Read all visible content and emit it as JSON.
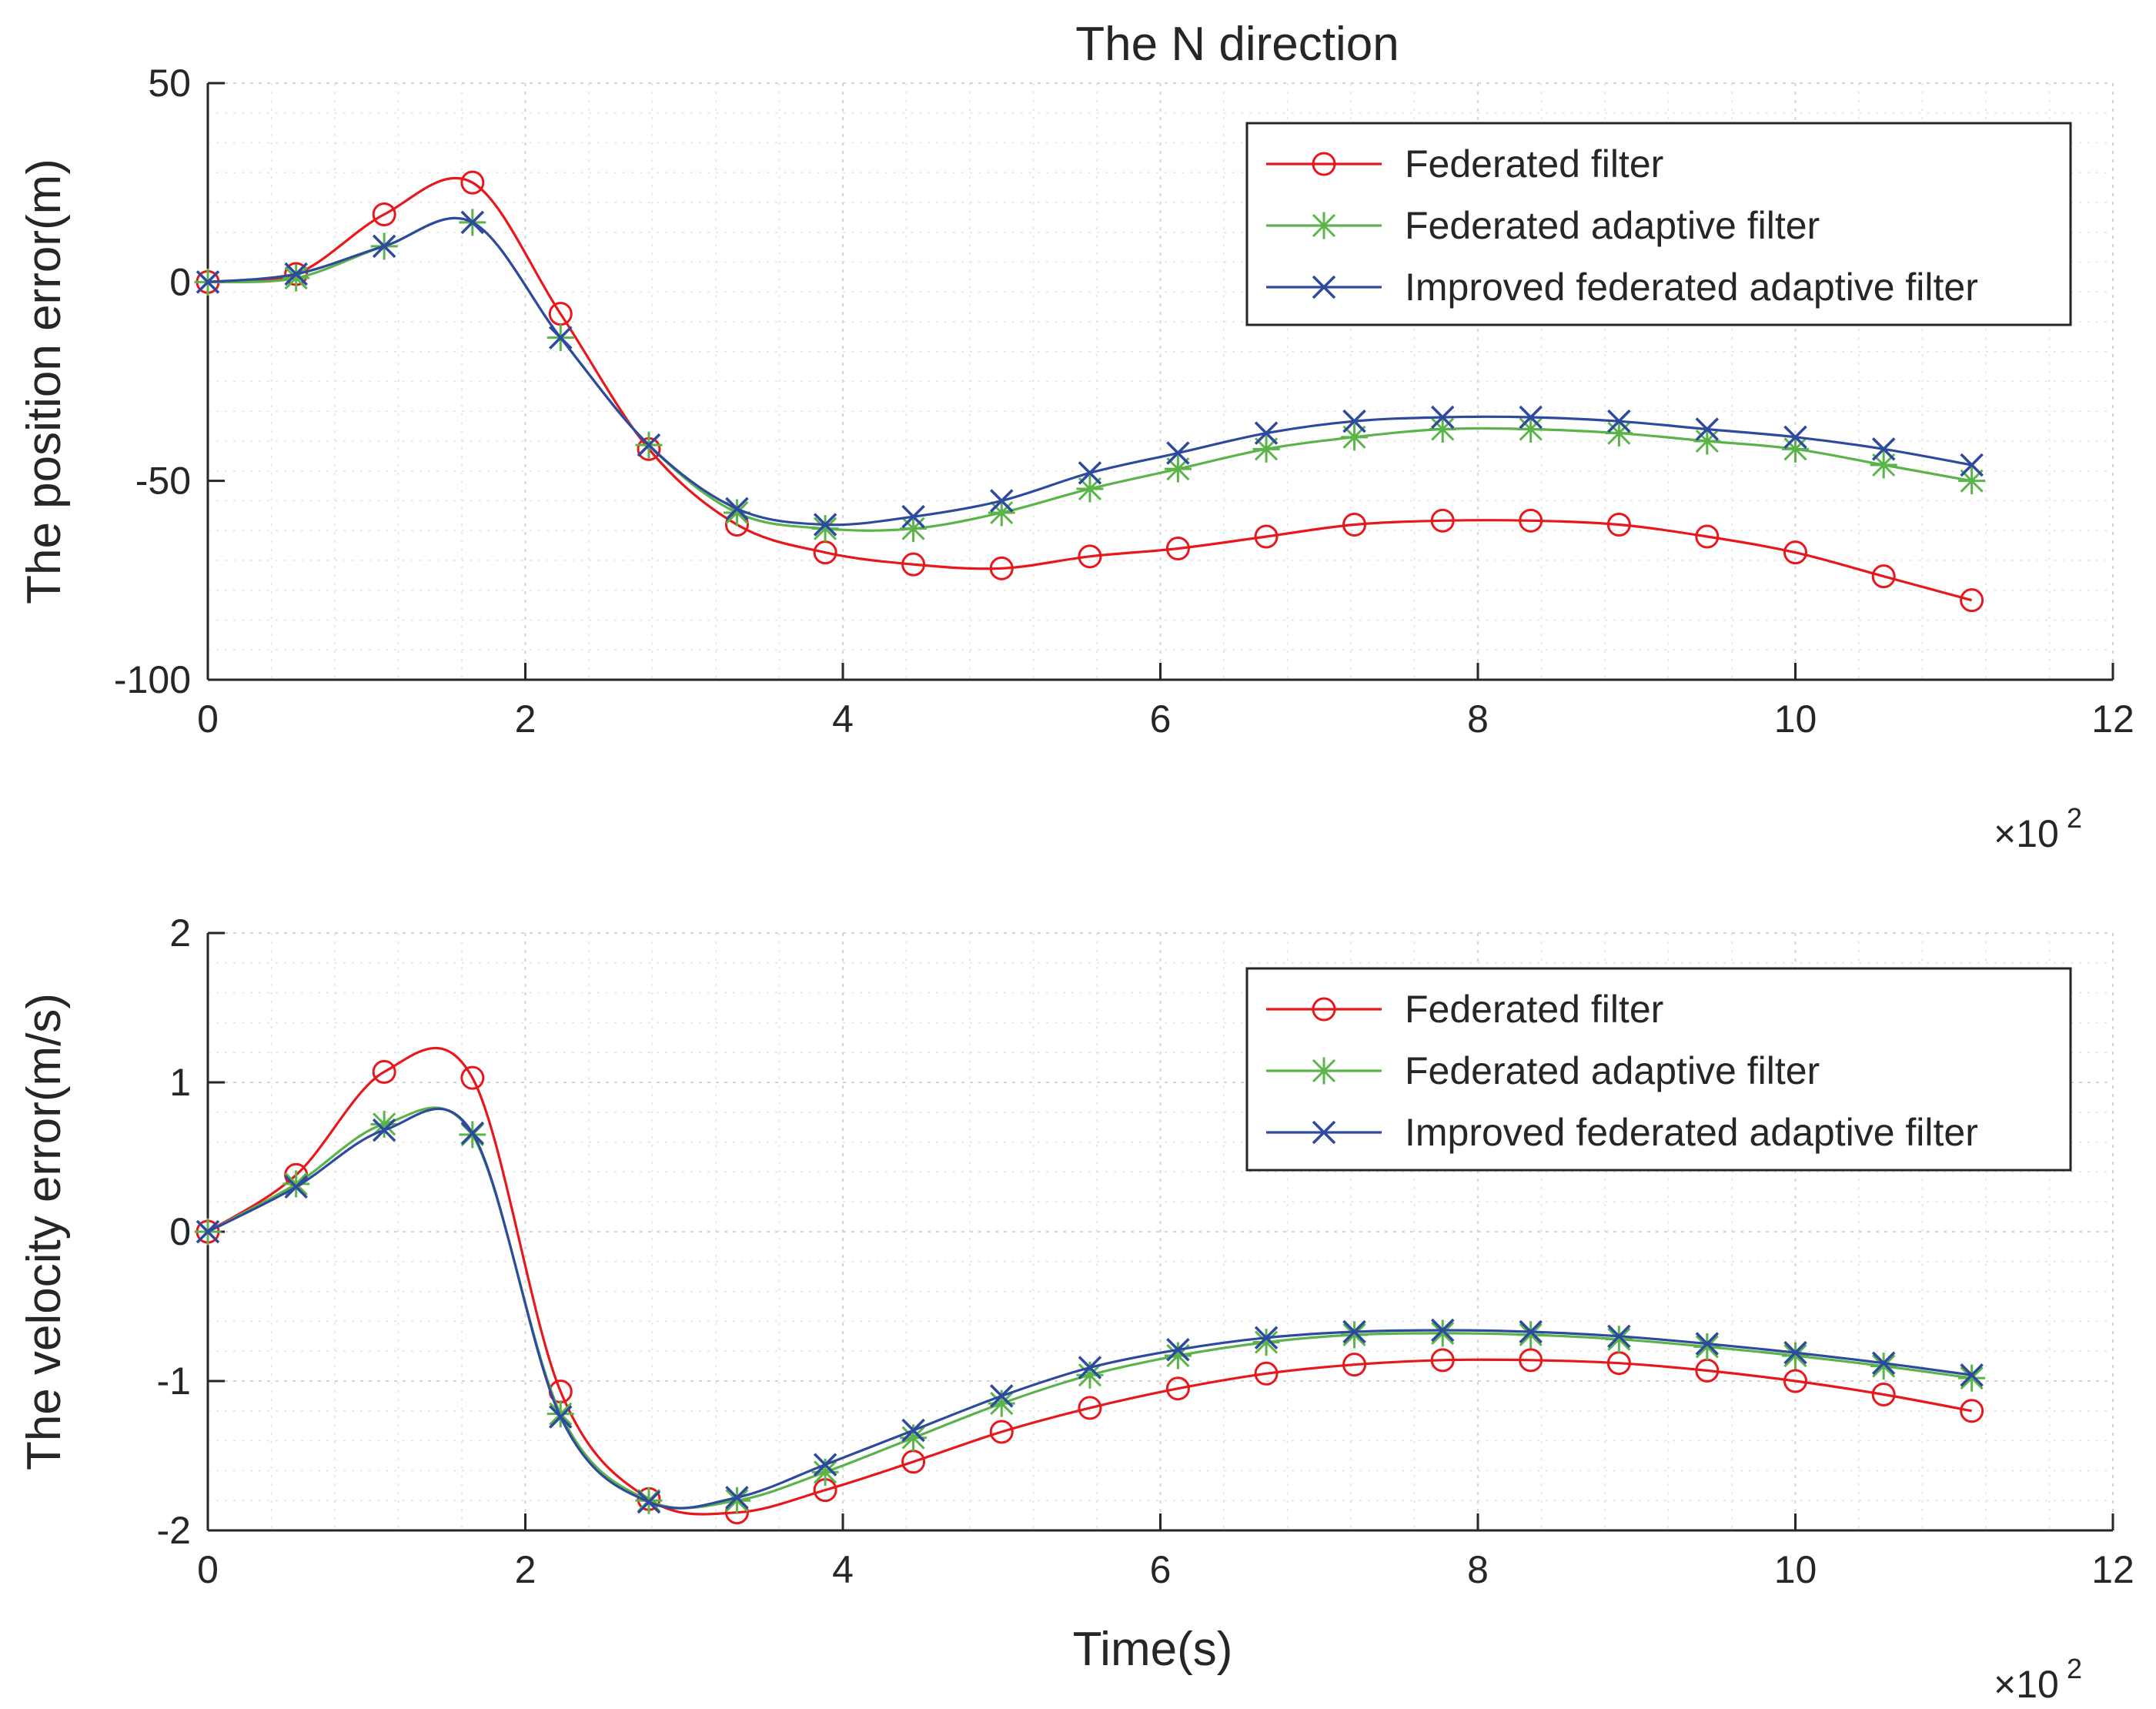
{
  "chart_data": [
    {
      "type": "line",
      "title": "The N direction",
      "xlabel": "",
      "ylabel": "The position error(m)",
      "x_exponent_label": "×10",
      "x_exponent_power": "2",
      "xlim": [
        0,
        12
      ],
      "ylim": [
        -100,
        50
      ],
      "xticks": [
        0,
        2,
        4,
        6,
        8,
        10,
        12
      ],
      "yticks": [
        -100,
        -50,
        0,
        50
      ],
      "xtick_labels": [
        "0",
        "2",
        "4",
        "6",
        "8",
        "10",
        "12"
      ],
      "ytick_labels": [
        "-100",
        "-50",
        "0",
        "50"
      ],
      "grid": true,
      "legend_position": "top-right",
      "x": [
        0,
        0.556,
        1.111,
        1.667,
        2.222,
        2.778,
        3.333,
        3.889,
        4.444,
        5.0,
        5.556,
        6.111,
        6.667,
        7.222,
        7.778,
        8.333,
        8.889,
        9.444,
        10.0,
        10.556,
        11.111
      ],
      "series": [
        {
          "name": "Federated filter",
          "color": "#e8171b",
          "marker": "circle",
          "values": [
            0,
            2,
            17,
            25,
            -8,
            -42,
            -61,
            -68,
            -71,
            -72,
            -69,
            -67,
            -64,
            -61,
            -60,
            -60,
            -61,
            -64,
            -68,
            -74,
            -80
          ]
        },
        {
          "name": "Federated adaptive filter",
          "color": "#5bb44a",
          "marker": "asterisk",
          "values": [
            0,
            1,
            9,
            15,
            -14,
            -41,
            -58,
            -62,
            -62,
            -58,
            -52,
            -47,
            -42,
            -39,
            -37,
            -37,
            -38,
            -40,
            -42,
            -46,
            -50
          ]
        },
        {
          "name": "Improved federated adaptive filter",
          "color": "#2e4a9e",
          "marker": "x",
          "values": [
            0,
            2,
            9,
            15,
            -14,
            -41,
            -57,
            -61,
            -59,
            -55,
            -48,
            -43,
            -38,
            -35,
            -34,
            -34,
            -35,
            -37,
            -39,
            -42,
            -46
          ]
        }
      ]
    },
    {
      "type": "line",
      "title": "",
      "xlabel": "Time(s)",
      "ylabel": "The velocity error(m/s)",
      "x_exponent_label": "×10",
      "x_exponent_power": "2",
      "xlim": [
        0,
        12
      ],
      "ylim": [
        -2,
        2
      ],
      "xticks": [
        0,
        2,
        4,
        6,
        8,
        10,
        12
      ],
      "yticks": [
        -2,
        -1,
        0,
        1,
        2
      ],
      "xtick_labels": [
        "0",
        "2",
        "4",
        "6",
        "8",
        "10",
        "12"
      ],
      "ytick_labels": [
        "-2",
        "-1",
        "0",
        "1",
        "2"
      ],
      "grid": true,
      "legend_position": "top-right",
      "x": [
        0,
        0.556,
        1.111,
        1.667,
        2.222,
        2.778,
        3.333,
        3.889,
        4.444,
        5.0,
        5.556,
        6.111,
        6.667,
        7.222,
        7.778,
        8.333,
        8.889,
        9.444,
        10.0,
        10.556,
        11.111
      ],
      "series": [
        {
          "name": "Federated filter",
          "color": "#e8171b",
          "marker": "circle",
          "values": [
            0,
            0.38,
            1.07,
            1.03,
            -1.07,
            -1.79,
            -1.88,
            -1.73,
            -1.54,
            -1.34,
            -1.18,
            -1.05,
            -0.95,
            -0.89,
            -0.86,
            -0.86,
            -0.88,
            -0.93,
            -1.0,
            -1.09,
            -1.2
          ]
        },
        {
          "name": "Federated adaptive filter",
          "color": "#5bb44a",
          "marker": "asterisk",
          "values": [
            0,
            0.32,
            0.72,
            0.65,
            -1.22,
            -1.8,
            -1.8,
            -1.61,
            -1.38,
            -1.15,
            -0.96,
            -0.83,
            -0.74,
            -0.69,
            -0.68,
            -0.69,
            -0.72,
            -0.77,
            -0.83,
            -0.9,
            -0.98
          ]
        },
        {
          "name": "Improved federated adaptive filter",
          "color": "#2e4a9e",
          "marker": "x",
          "values": [
            0,
            0.3,
            0.68,
            0.66,
            -1.24,
            -1.81,
            -1.78,
            -1.56,
            -1.33,
            -1.1,
            -0.91,
            -0.79,
            -0.71,
            -0.67,
            -0.66,
            -0.67,
            -0.7,
            -0.75,
            -0.81,
            -0.88,
            -0.96
          ]
        }
      ]
    }
  ]
}
